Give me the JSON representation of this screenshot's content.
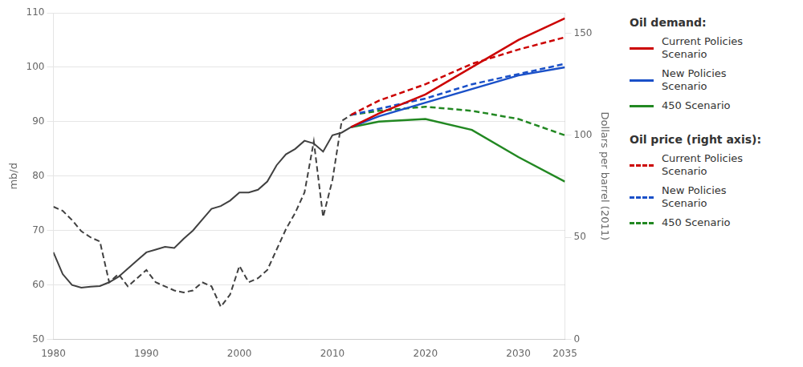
{
  "chart_data": {
    "type": "line",
    "ylabel": "mb/d",
    "y2label": "Dollars per barrel (2011)",
    "xlim": [
      1980,
      2035
    ],
    "xticks": [
      1980,
      1990,
      2000,
      2010,
      2020,
      2030,
      2035
    ],
    "ylim": [
      50,
      110
    ],
    "yticks": [
      50,
      60,
      70,
      80,
      90,
      100,
      110
    ],
    "y2lim": [
      0,
      160
    ],
    "y2ticks": [
      0,
      50,
      100,
      150
    ],
    "grid": true,
    "legends": [
      {
        "title": "Oil demand:",
        "axis": "y"
      },
      {
        "title": "Oil price (right axis):",
        "axis": "y2"
      }
    ],
    "series": [
      {
        "color": "#404040",
        "line_style": "solid",
        "axis": "y",
        "x": [
          1980,
          1981,
          1982,
          1983,
          1984,
          1985,
          1986,
          1987,
          1988,
          1989,
          1990,
          1991,
          1992,
          1993,
          1994,
          1995,
          1996,
          1997,
          1998,
          1999,
          2000,
          2001,
          2002,
          2003,
          2004,
          2005,
          2006,
          2007,
          2008,
          2009,
          2010,
          2011,
          2012
        ],
        "values": [
          66.0,
          62.0,
          60.0,
          59.5,
          59.7,
          59.8,
          60.5,
          61.5,
          63.0,
          64.5,
          66.0,
          66.5,
          67.0,
          66.8,
          68.5,
          70.0,
          72.0,
          74.0,
          74.5,
          75.5,
          77.0,
          77.0,
          77.5,
          79.0,
          82.0,
          84.0,
          85.0,
          86.5,
          86.0,
          84.5,
          87.5,
          88.0,
          89.0
        ]
      },
      {
        "name": "Current Policies\nScenario",
        "color": "#cc0000",
        "line_style": "solid",
        "axis": "y",
        "x": [
          2012,
          2015,
          2020,
          2025,
          2030,
          2035
        ],
        "values": [
          89.0,
          91.5,
          95.0,
          100.0,
          105.0,
          109.0
        ]
      },
      {
        "name": "New Policies\nScenario",
        "color": "#1a50c8",
        "line_style": "solid",
        "axis": "y",
        "x": [
          2012,
          2015,
          2020,
          2025,
          2030,
          2035
        ],
        "values": [
          89.0,
          91.0,
          93.5,
          96.0,
          98.5,
          100.0
        ]
      },
      {
        "name": "450 Scenario",
        "color": "#228822",
        "line_style": "solid",
        "axis": "y",
        "x": [
          2012,
          2015,
          2020,
          2025,
          2030,
          2035
        ],
        "values": [
          89.0,
          90.0,
          90.5,
          88.5,
          83.5,
          79.0
        ]
      },
      {
        "color": "#404040",
        "line_style": "dashed",
        "axis": "y2",
        "x": [
          1980,
          1981,
          1982,
          1983,
          1984,
          1985,
          1986,
          1987,
          1988,
          1989,
          1990,
          1991,
          1992,
          1993,
          1994,
          1995,
          1996,
          1997,
          1998,
          1999,
          2000,
          2001,
          2002,
          2003,
          2004,
          2005,
          2006,
          2007,
          2008,
          2009,
          2010,
          2011,
          2012
        ],
        "values": [
          65.0,
          63.0,
          58.5,
          53.0,
          50.0,
          48.0,
          28.0,
          32.0,
          26.0,
          30.0,
          34.0,
          28.0,
          26.0,
          24.0,
          23.0,
          24.0,
          28.0,
          26.0,
          16.0,
          22.0,
          36.0,
          28.0,
          30.0,
          34.0,
          44.0,
          54.0,
          62.0,
          72.0,
          97.0,
          60.0,
          78.0,
          107.0,
          110.0
        ]
      },
      {
        "name": "Current Policies\nScenario",
        "color": "#cc0000",
        "line_style": "dashed",
        "axis": "y2",
        "x": [
          2012,
          2015,
          2020,
          2025,
          2030,
          2035
        ],
        "values": [
          110.0,
          117.0,
          125.0,
          135.0,
          142.0,
          148.0
        ]
      },
      {
        "name": "New Policies\nScenario",
        "color": "#1a50c8",
        "line_style": "dashed",
        "axis": "y2",
        "x": [
          2012,
          2015,
          2020,
          2025,
          2030,
          2035
        ],
        "values": [
          110.0,
          113.0,
          118.0,
          125.0,
          130.0,
          135.0
        ]
      },
      {
        "name": "450 Scenario",
        "color": "#228822",
        "line_style": "dashed",
        "axis": "y2",
        "x": [
          2012,
          2015,
          2020,
          2025,
          2030,
          2035
        ],
        "values": [
          110.0,
          112.0,
          114.0,
          112.0,
          108.0,
          100.0
        ]
      }
    ]
  }
}
